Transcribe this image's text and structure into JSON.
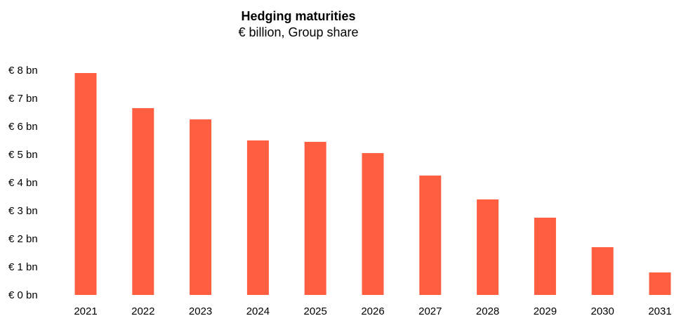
{
  "chart_data": {
    "type": "bar",
    "title": "Hedging maturities",
    "subtitle": "€ billion, Group share",
    "xlabel": "",
    "ylabel": "",
    "categories": [
      "2021",
      "2022",
      "2023",
      "2024",
      "2025",
      "2026",
      "2027",
      "2028",
      "2029",
      "2030",
      "2031"
    ],
    "values": [
      7.9,
      6.65,
      6.25,
      5.5,
      5.45,
      5.05,
      4.25,
      3.4,
      2.75,
      1.7,
      0.8
    ],
    "ylim": [
      0,
      8
    ],
    "y_ticks": [
      0,
      1,
      2,
      3,
      4,
      5,
      6,
      7,
      8
    ],
    "y_tick_format": "€ {v} bn",
    "grid": false,
    "bar_color": "#ff5f40"
  }
}
